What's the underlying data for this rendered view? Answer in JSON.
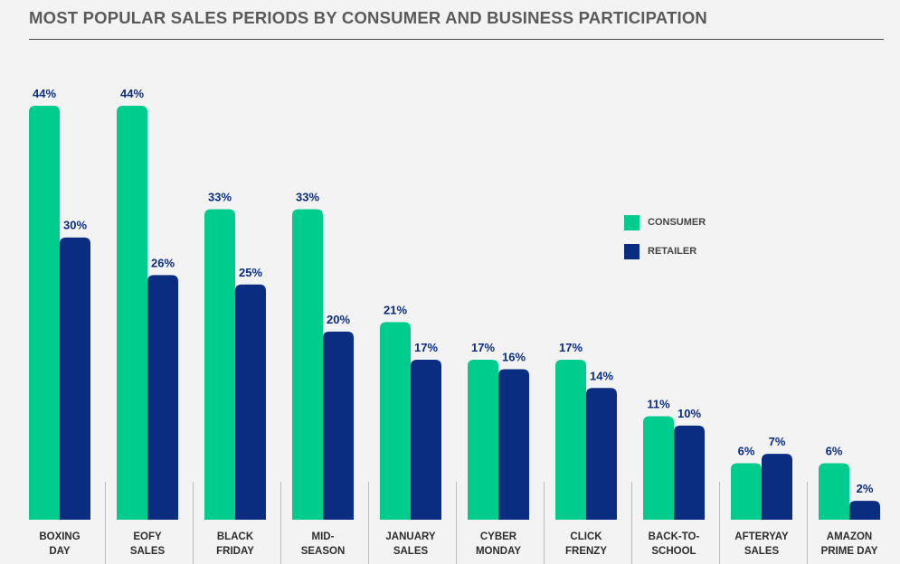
{
  "chart_data": {
    "type": "bar",
    "title": "MOST POPULAR SALES PERIODS BY CONSUMER AND BUSINESS PARTICIPATION",
    "categories": [
      [
        "BOXING",
        "DAY"
      ],
      [
        "EOFY",
        "SALES"
      ],
      [
        "BLACK",
        "FRIDAY"
      ],
      [
        "MID-",
        "SEASON"
      ],
      [
        "JANUARY",
        "SALES"
      ],
      [
        "CYBER",
        "MONDAY"
      ],
      [
        "CLICK",
        "FRENZY"
      ],
      [
        "BACK-TO-",
        "SCHOOL"
      ],
      [
        "AFTERYAY",
        "SALES"
      ],
      [
        "AMAZON",
        "PRIME DAY"
      ]
    ],
    "series": [
      {
        "name": "CONSUMER",
        "color": "#00cc8e",
        "values": [
          44,
          44,
          33,
          33,
          21,
          17,
          17,
          11,
          6,
          6
        ],
        "labels": [
          "44%",
          "44%",
          "33%",
          "33%",
          "21%",
          "17%",
          "17%",
          "11%",
          "6%",
          "6%"
        ]
      },
      {
        "name": "RETAILER",
        "color": "#0a2d82",
        "values": [
          30,
          26,
          25,
          20,
          17,
          16,
          14,
          10,
          7,
          2
        ],
        "labels": [
          "30%",
          "26%",
          "25%",
          "20%",
          "17%",
          "16%",
          "14%",
          "10%",
          "7%",
          "2%"
        ]
      }
    ],
    "ylim": [
      0,
      44
    ],
    "grid": false,
    "legend_position": "right"
  }
}
